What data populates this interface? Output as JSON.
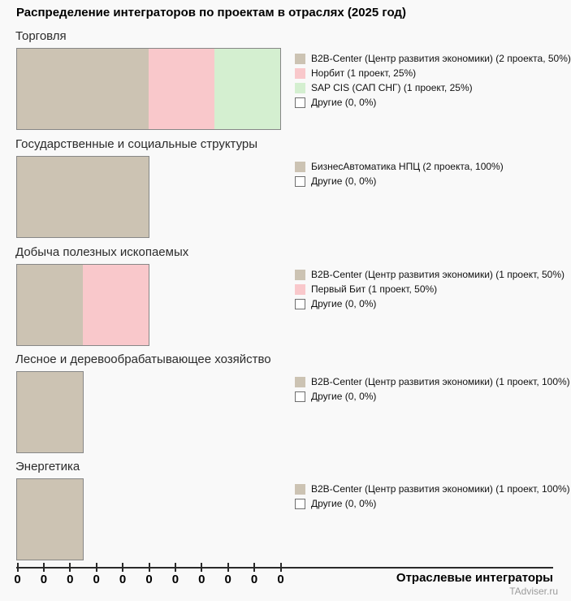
{
  "source": "TAdviser.ru",
  "axis": {
    "xlabel": "Отраслевые интеграторы",
    "tick_labels": [
      "0",
      "0",
      "0",
      "0",
      "0",
      "0",
      "0",
      "0",
      "0",
      "0",
      "0"
    ]
  },
  "colors": {
    "background": "#f9f9f9",
    "bar_border": "#878787",
    "b2b_center_beige": "#ccc3b3",
    "pink": "#f9c8cb",
    "green": "#d4efd0",
    "others_white": "#ffffff",
    "source_gray": "#9b9b9b"
  },
  "chart_data": {
    "type": "bar",
    "orientation": "horizontal-stacked",
    "title": "Распределение интеграторов по проектам в отраслях (2025 год)",
    "xlabel": "Отраслевые интеграторы",
    "x_tick_labels": [
      "0",
      "0",
      "0",
      "0",
      "0",
      "0",
      "0",
      "0",
      "0",
      "0",
      "0"
    ],
    "legend_position": "right-of-each-bar",
    "grid": false,
    "sections": [
      {
        "category": "Торговля",
        "total_projects": 4,
        "segments": [
          {
            "name": "B2B-Center (Центр развития экономики)",
            "projects": 2,
            "percent": 50,
            "color": "#ccc3b3",
            "label": "B2B-Center (Центр развития экономики) (2 проекта, 50%)"
          },
          {
            "name": "Норбит",
            "projects": 1,
            "percent": 25,
            "color": "#f9c8cb",
            "label": "Норбит (1 проект, 25%)"
          },
          {
            "name": "SAP CIS (САП СНГ)",
            "projects": 1,
            "percent": 25,
            "color": "#d4efd0",
            "label": "SAP CIS (САП СНГ) (1 проект, 25%)"
          },
          {
            "name": "Другие",
            "projects": 0,
            "percent": 0,
            "color": "#ffffff",
            "label": "Другие (0, 0%)"
          }
        ]
      },
      {
        "category": "Государственные и социальные структуры",
        "total_projects": 2,
        "segments": [
          {
            "name": "БизнесАвтоматика НПЦ",
            "projects": 2,
            "percent": 100,
            "color": "#ccc3b3",
            "label": "БизнесАвтоматика НПЦ (2 проекта, 100%)"
          },
          {
            "name": "Другие",
            "projects": 0,
            "percent": 0,
            "color": "#ffffff",
            "label": "Другие (0, 0%)"
          }
        ]
      },
      {
        "category": "Добыча полезных ископаемых",
        "total_projects": 2,
        "segments": [
          {
            "name": "B2B-Center (Центр развития экономики)",
            "projects": 1,
            "percent": 50,
            "color": "#ccc3b3",
            "label": "B2B-Center (Центр развития экономики) (1 проект, 50%)"
          },
          {
            "name": "Первый Бит",
            "projects": 1,
            "percent": 50,
            "color": "#f9c8cb",
            "label": "Первый Бит (1 проект, 50%)"
          },
          {
            "name": "Другие",
            "projects": 0,
            "percent": 0,
            "color": "#ffffff",
            "label": "Другие (0, 0%)"
          }
        ]
      },
      {
        "category": "Лесное и деревообрабатывающее хозяйство",
        "total_projects": 1,
        "segments": [
          {
            "name": "B2B-Center (Центр развития экономики)",
            "projects": 1,
            "percent": 100,
            "color": "#ccc3b3",
            "label": "B2B-Center (Центр развития экономики) (1 проект, 100%)"
          },
          {
            "name": "Другие",
            "projects": 0,
            "percent": 0,
            "color": "#ffffff",
            "label": "Другие (0, 0%)"
          }
        ]
      },
      {
        "category": "Энергетика",
        "total_projects": 1,
        "segments": [
          {
            "name": "B2B-Center (Центр развития экономики)",
            "projects": 1,
            "percent": 100,
            "color": "#ccc3b3",
            "label": "B2B-Center (Центр развития экономики) (1 проект, 100%)"
          },
          {
            "name": "Другие",
            "projects": 0,
            "percent": 0,
            "color": "#ffffff",
            "label": "Другие (0, 0%)"
          }
        ]
      }
    ]
  }
}
